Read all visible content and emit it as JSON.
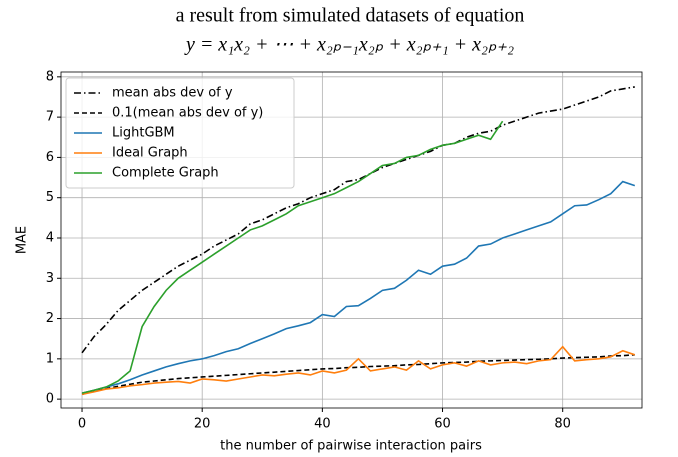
{
  "chart_data": {
    "type": "line",
    "title": [
      "a result from simulated datasets of equation",
      "y = x₁x₂ + ⋯ + x₂ₚ₋₁x₂ₚ + x₂ₚ₊₁ + x₂ₚ₊₂"
    ],
    "xlabel": "the number of pairwise interaction pairs",
    "ylabel": "MAE",
    "x": [
      0,
      2,
      4,
      6,
      8,
      10,
      12,
      14,
      16,
      18,
      20,
      22,
      24,
      26,
      28,
      30,
      32,
      34,
      36,
      38,
      40,
      42,
      44,
      46,
      48,
      50,
      52,
      54,
      56,
      58,
      60,
      62,
      64,
      66,
      68,
      70,
      72,
      74,
      76,
      78,
      80,
      82,
      84,
      86,
      88,
      90,
      92
    ],
    "xlim": [
      -3.5,
      93.2
    ],
    "ylim": [
      -0.22,
      8.12
    ],
    "xticks": [
      0,
      20,
      40,
      60,
      80
    ],
    "yticks": [
      0,
      1,
      2,
      3,
      4,
      5,
      6,
      7,
      8
    ],
    "grid": true,
    "legend": "upper left",
    "series": [
      {
        "name": "mean abs dev of y",
        "color": "#000000",
        "linestyle": "dashdot",
        "values": [
          1.15,
          1.55,
          1.85,
          2.2,
          2.45,
          2.7,
          2.9,
          3.1,
          3.3,
          3.45,
          3.6,
          3.8,
          3.95,
          4.1,
          4.35,
          4.45,
          4.6,
          4.75,
          4.85,
          5.0,
          5.1,
          5.2,
          5.4,
          5.45,
          5.6,
          5.75,
          5.85,
          5.95,
          6.05,
          6.15,
          6.3,
          6.35,
          6.5,
          6.6,
          6.65,
          6.8,
          6.9,
          7.0,
          7.1,
          7.15,
          7.2,
          7.3,
          7.4,
          7.5,
          7.65,
          7.7,
          7.75
        ]
      },
      {
        "name": "0.1(mean abs dev of y)",
        "color": "#000000",
        "linestyle": "dashed",
        "values": [
          0.12,
          0.2,
          0.26,
          0.32,
          0.37,
          0.42,
          0.45,
          0.48,
          0.51,
          0.53,
          0.55,
          0.57,
          0.59,
          0.61,
          0.63,
          0.65,
          0.67,
          0.69,
          0.71,
          0.73,
          0.75,
          0.76,
          0.78,
          0.79,
          0.81,
          0.82,
          0.83,
          0.85,
          0.86,
          0.88,
          0.9,
          0.91,
          0.92,
          0.94,
          0.95,
          0.96,
          0.97,
          0.98,
          0.99,
          1.0,
          1.02,
          1.03,
          1.04,
          1.05,
          1.07,
          1.08,
          1.1
        ]
      },
      {
        "name": "LightGBM",
        "color": "#1f77b4",
        "linestyle": "solid",
        "values": [
          0.15,
          0.22,
          0.3,
          0.38,
          0.48,
          0.6,
          0.7,
          0.8,
          0.88,
          0.95,
          1.0,
          1.08,
          1.18,
          1.25,
          1.38,
          1.5,
          1.62,
          1.75,
          1.82,
          1.9,
          2.1,
          2.05,
          2.3,
          2.32,
          2.5,
          2.7,
          2.75,
          2.95,
          3.2,
          3.1,
          3.3,
          3.35,
          3.5,
          3.8,
          3.85,
          4.0,
          4.1,
          4.2,
          4.3,
          4.4,
          4.6,
          4.8,
          4.82,
          4.95,
          5.1,
          5.4,
          5.3
        ]
      },
      {
        "name": "Ideal Graph",
        "color": "#ff7f0e",
        "linestyle": "solid",
        "values": [
          0.12,
          0.18,
          0.25,
          0.28,
          0.33,
          0.36,
          0.4,
          0.42,
          0.44,
          0.4,
          0.5,
          0.48,
          0.45,
          0.5,
          0.55,
          0.6,
          0.58,
          0.62,
          0.65,
          0.6,
          0.7,
          0.65,
          0.72,
          1.0,
          0.7,
          0.75,
          0.8,
          0.72,
          0.95,
          0.75,
          0.85,
          0.9,
          0.82,
          0.95,
          0.85,
          0.9,
          0.92,
          0.88,
          0.95,
          0.98,
          1.3,
          0.95,
          0.98,
          1.0,
          1.05,
          1.2,
          1.1
        ]
      },
      {
        "name": "Complete Graph",
        "color": "#2ca02c",
        "linestyle": "solid",
        "values": [
          0.15,
          0.22,
          0.3,
          0.45,
          0.7,
          1.8,
          2.3,
          2.7,
          3.0,
          3.2,
          3.4,
          3.6,
          3.8,
          4.0,
          4.2,
          4.3,
          4.45,
          4.6,
          4.8,
          4.9,
          5.0,
          5.1,
          5.25,
          5.4,
          5.6,
          5.8,
          5.85,
          6.0,
          6.05,
          6.2,
          6.3,
          6.35,
          6.45,
          6.55,
          6.45,
          6.9,
          null,
          null,
          null,
          null,
          null,
          null,
          null,
          null,
          null,
          null,
          null
        ]
      }
    ]
  }
}
